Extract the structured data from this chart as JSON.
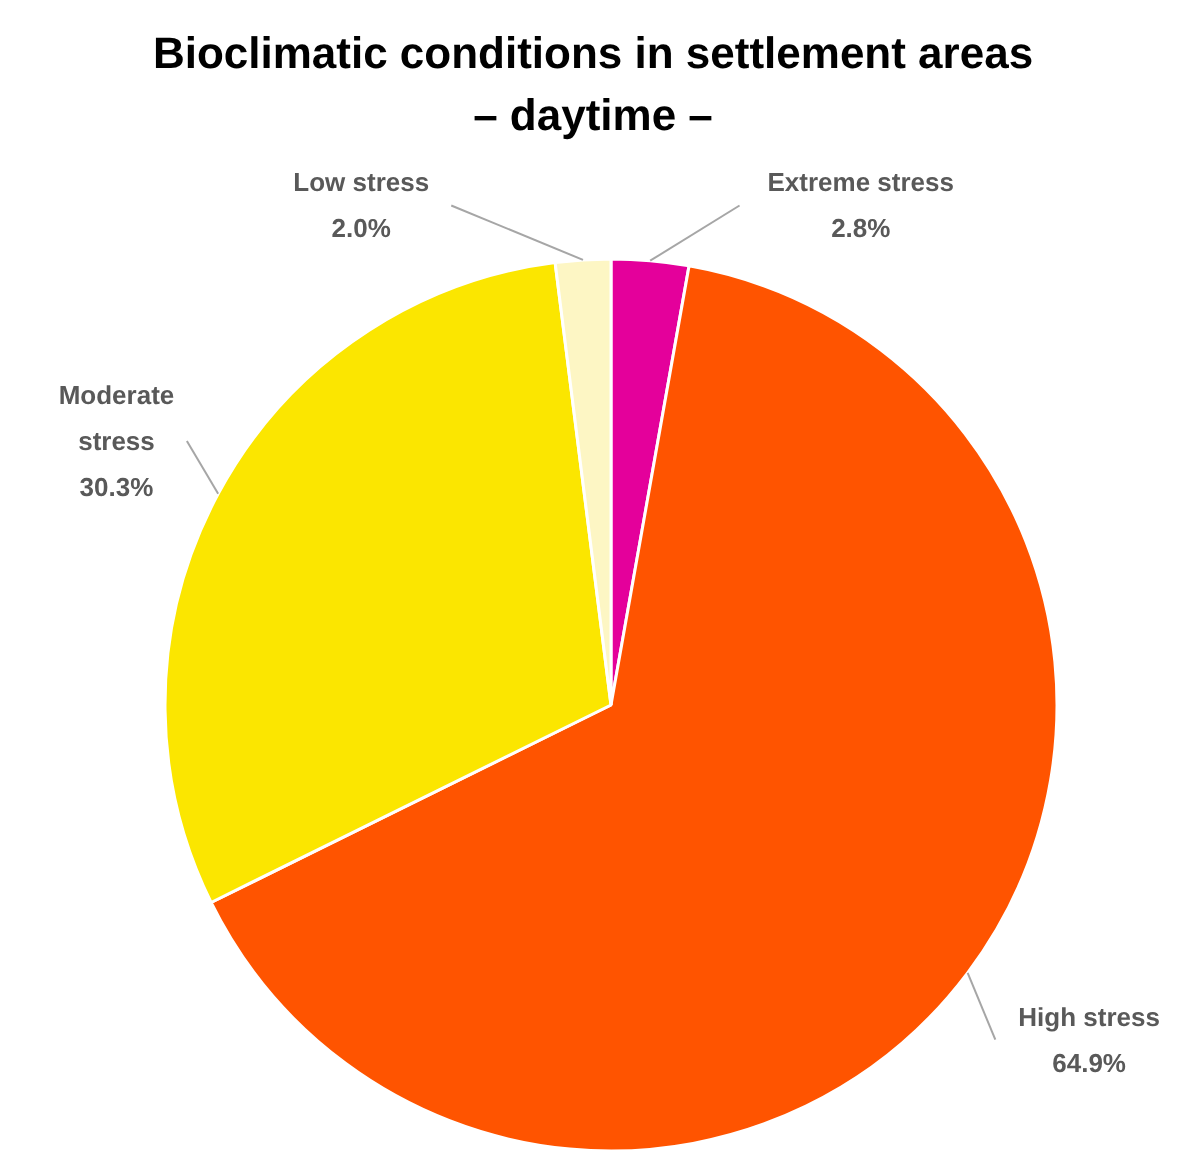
{
  "chart_data": {
    "type": "pie",
    "title": "Bioclimatic conditions in settlement areas",
    "subtitle": "– daytime –",
    "categories": [
      "Extreme stress",
      "High stress",
      "Moderate stress",
      "Low stress"
    ],
    "values": [
      2.8,
      64.9,
      30.3,
      2.0
    ],
    "colors": [
      "#e4009b",
      "#ff5400",
      "#fbe600",
      "#fdf6c4"
    ],
    "value_labels": [
      "2.8%",
      "64.9%",
      "30.3%",
      "2.0%"
    ]
  }
}
